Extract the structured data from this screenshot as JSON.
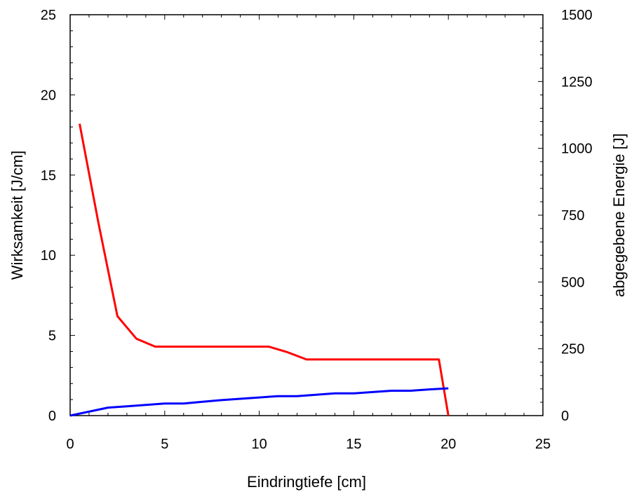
{
  "chart_data": {
    "type": "line",
    "title": "",
    "xlabel": "Eindringtiefe [cm]",
    "ylabel_left": "Wirksamkeit [J/cm]",
    "ylabel_right": "abgegebene Energie [J]",
    "xlim": [
      0,
      25
    ],
    "ylim_left": [
      0,
      25
    ],
    "ylim_right": [
      0,
      1500
    ],
    "x_ticks": [
      "0",
      "5",
      "10",
      "15",
      "20",
      "25"
    ],
    "y_left_ticks": [
      "0",
      "5",
      "10",
      "15",
      "20",
      "25"
    ],
    "y_right_ticks": [
      "0",
      "250",
      "500",
      "750",
      "1000",
      "1250",
      "1500"
    ],
    "grid": false,
    "series": [
      {
        "axis": "left",
        "color": "#ff0000",
        "x": [
          0.5,
          1.5,
          2.5,
          3.5,
          4.5,
          5.5,
          6.5,
          7.5,
          8.5,
          9.5,
          10.5,
          11.5,
          12.5,
          13.5,
          14.5,
          15.5,
          16.5,
          17.5,
          18.5,
          19.5,
          20.0
        ],
        "y": [
          18.2,
          12.0,
          6.2,
          4.8,
          4.3,
          4.3,
          4.3,
          4.3,
          4.3,
          4.3,
          4.3,
          3.95,
          3.5,
          3.5,
          3.5,
          3.5,
          3.5,
          3.5,
          3.5,
          3.5,
          0.0
        ]
      },
      {
        "axis": "right",
        "color": "#0000ff",
        "x": [
          0,
          2,
          3,
          4,
          5,
          6,
          7,
          8,
          9,
          10,
          11,
          12,
          13,
          14,
          15,
          16,
          17,
          18,
          19,
          20
        ],
        "y": [
          0,
          30,
          35,
          40,
          45,
          45,
          52,
          58,
          63,
          68,
          73,
          73,
          78,
          83,
          83,
          88,
          93,
          93,
          98,
          102
        ]
      }
    ]
  }
}
